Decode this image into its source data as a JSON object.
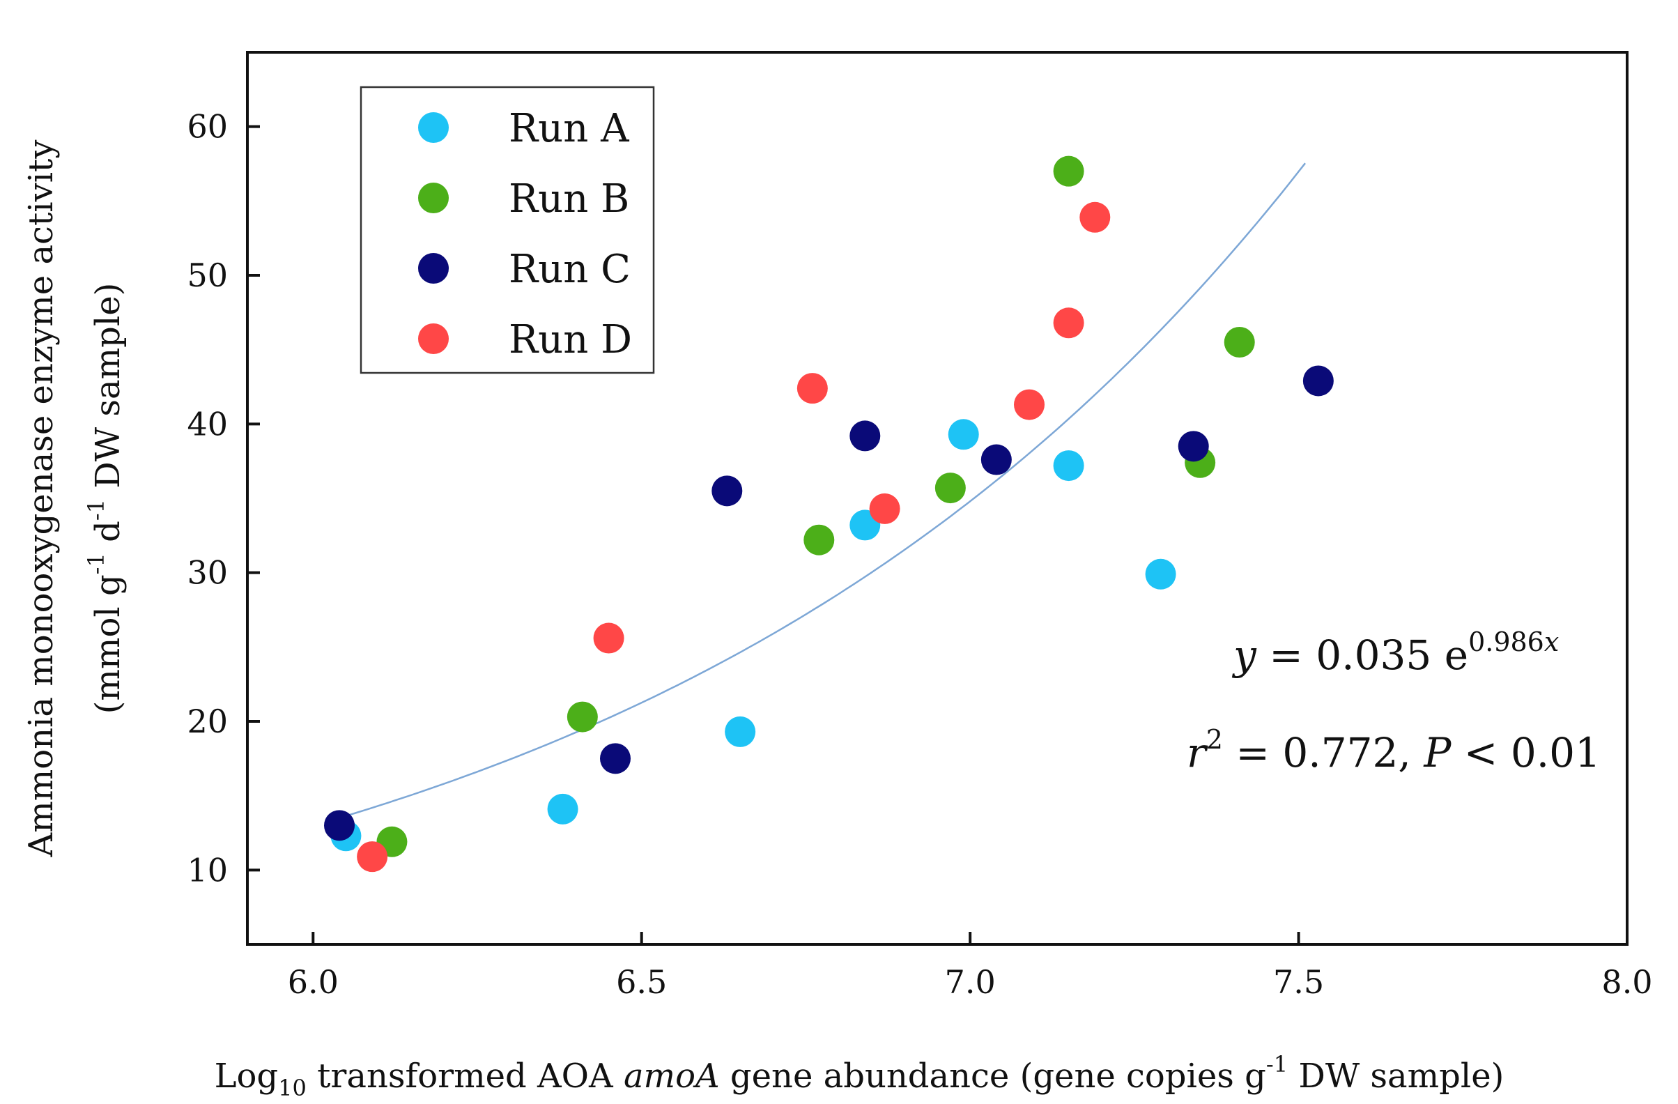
{
  "colors": {
    "run_a": "#1EC3F5",
    "run_b": "#4CAF19",
    "run_c": "#0A0A78",
    "run_d": "#FF4747",
    "trend": "#7DA7D6"
  },
  "chart_data": {
    "type": "scatter",
    "title": "",
    "xlabel": {
      "prefix": "Log",
      "sub": "10",
      "mid": " transformed AOA ",
      "italic": "amoA",
      "mid2": " gene abundance (gene copies g",
      "sup": "-1",
      "suffix": " DW sample)"
    },
    "ylabel": {
      "line1": "Ammonia monooxygenase enzyme activity",
      "line2_a": "(mmol g",
      "line2_sup1": "-1",
      "line2_b": " d",
      "line2_sup2": "-1",
      "line2_c": " DW sample)"
    },
    "xlim": [
      5.9,
      8.0
    ],
    "ylim": [
      5,
      65
    ],
    "x_ticks": [
      6.0,
      6.5,
      7.0,
      7.5,
      8.0
    ],
    "x_tick_labels": [
      "6.0",
      "6.5",
      "7.0",
      "7.5",
      "8.0"
    ],
    "y_ticks": [
      10,
      20,
      30,
      40,
      50,
      60
    ],
    "y_tick_labels": [
      "10",
      "20",
      "30",
      "40",
      "50",
      "60"
    ],
    "legend_position": "top-left",
    "series": [
      {
        "name": "Run A",
        "color_key": "run_a",
        "points": [
          [
            6.05,
            12.3
          ],
          [
            6.38,
            14.1
          ],
          [
            6.65,
            19.3
          ],
          [
            6.84,
            33.2
          ],
          [
            6.99,
            39.3
          ],
          [
            7.15,
            37.2
          ],
          [
            7.29,
            29.9
          ]
        ]
      },
      {
        "name": "Run B",
        "color_key": "run_b",
        "points": [
          [
            6.12,
            11.9
          ],
          [
            6.41,
            20.3
          ],
          [
            6.77,
            32.2
          ],
          [
            6.97,
            35.7
          ],
          [
            7.15,
            57.0
          ],
          [
            7.35,
            37.4
          ],
          [
            7.41,
            45.5
          ]
        ]
      },
      {
        "name": "Run C",
        "color_key": "run_c",
        "points": [
          [
            6.04,
            13.0
          ],
          [
            6.46,
            17.5
          ],
          [
            6.63,
            35.5
          ],
          [
            6.84,
            39.2
          ],
          [
            7.04,
            37.6
          ],
          [
            7.34,
            38.5
          ],
          [
            7.53,
            42.9
          ]
        ]
      },
      {
        "name": "Run D",
        "color_key": "run_d",
        "points": [
          [
            6.09,
            10.9
          ],
          [
            6.45,
            25.6
          ],
          [
            6.76,
            42.4
          ],
          [
            6.87,
            34.3
          ],
          [
            7.09,
            41.3
          ],
          [
            7.15,
            46.8
          ],
          [
            7.19,
            53.9
          ]
        ]
      }
    ],
    "fit": {
      "type": "exponential",
      "a": 0.035,
      "b": 0.986,
      "x_range": [
        6.04,
        7.51
      ],
      "equation": {
        "y": "y",
        "eq": " = 0.035 e",
        "exp": "0.986",
        "x": "x"
      },
      "stats": {
        "r": "r",
        "sup": "2",
        "mid": " = 0.772, ",
        "p": "P",
        "tail": " < 0.01"
      }
    }
  }
}
